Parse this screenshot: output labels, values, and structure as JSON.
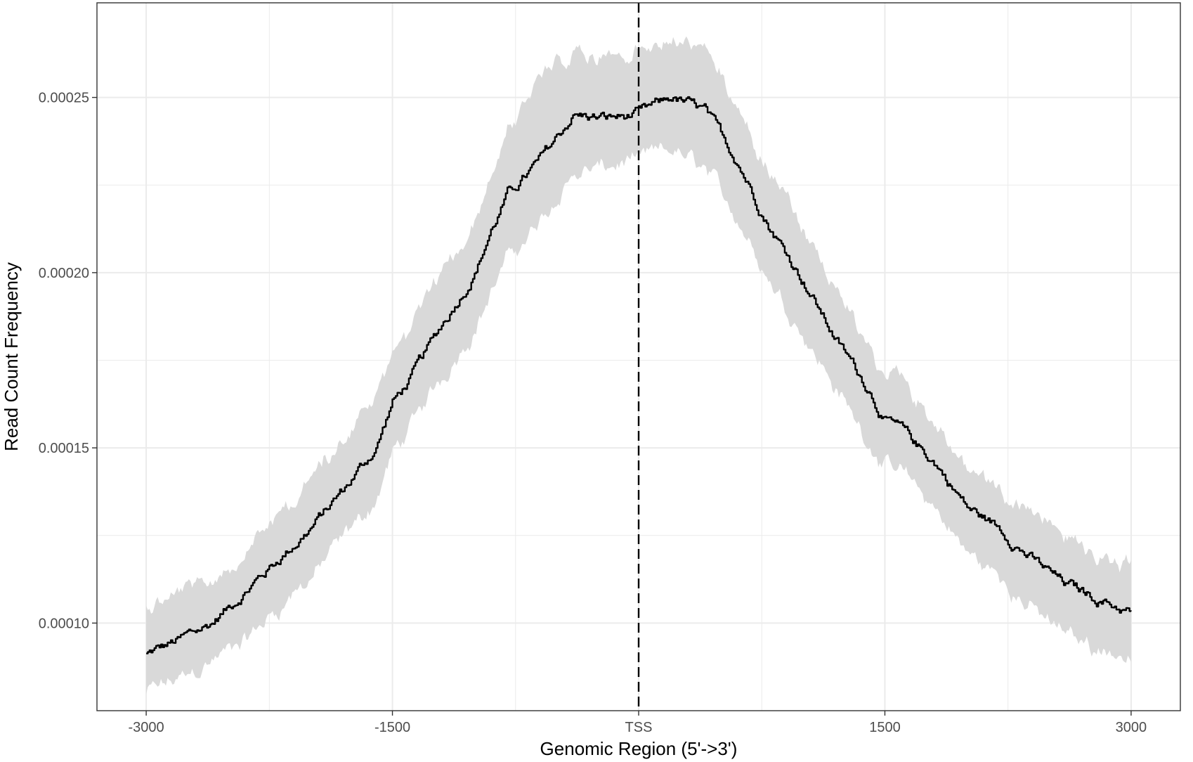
{
  "chart_data": {
    "type": "line",
    "title": "",
    "xlabel": "Genomic Region (5'->3')",
    "ylabel": "Read Count Frequency",
    "xlim": [
      -3300,
      3300
    ],
    "ylim": [
      7.5e-05,
      0.000277
    ],
    "x_ticks": [
      -3000,
      -1500,
      0,
      1500,
      3000
    ],
    "x_tick_labels": [
      "-3000",
      "-1500",
      "TSS",
      "1500",
      "3000"
    ],
    "x_minor_ticks": [
      -2250,
      -750,
      750,
      2250
    ],
    "y_ticks": [
      0.0001,
      0.00015,
      0.0002,
      0.00025
    ],
    "y_tick_labels": [
      "0.00010",
      "0.00015",
      "0.00020",
      "0.00025"
    ],
    "y_minor_ticks": [
      7.5e-05,
      0.000125,
      0.000175,
      0.000225
    ],
    "grid": true,
    "reference_line": {
      "x": 0,
      "style": "dashed",
      "color": "#000000"
    },
    "colors": {
      "line": "#000000",
      "ribbon": "#d9d9d9",
      "grid": "#ebebeb",
      "panel_border": "#333333"
    },
    "series": [
      {
        "x": [
          -3000,
          -2800,
          -2600,
          -2400,
          -2200,
          -2000,
          -1800,
          -1600,
          -1500,
          -1400,
          -1200,
          -1000,
          -900,
          -800,
          -600,
          -400,
          -200,
          0,
          200,
          400,
          600,
          800,
          1000,
          1200,
          1400,
          1500,
          1600,
          1800,
          2000,
          2200,
          2400,
          2600,
          2800,
          3000
        ],
        "y": [
          9.1e-05,
          9.5e-05,
          0.0001,
          0.000109,
          0.000118,
          0.000127,
          0.000138,
          0.00015,
          0.000163,
          0.000169,
          0.000185,
          0.0002,
          0.000212,
          0.000222,
          0.000232,
          0.000245,
          0.000244,
          0.000245,
          0.00025,
          0.000246,
          0.000232,
          0.000213,
          0.000198,
          0.000181,
          0.000167,
          0.000158,
          0.000155,
          0.000146,
          0.000133,
          0.000127,
          0.000118,
          0.000111,
          0.000107,
          0.000103
        ],
        "lower": [
          8e-05,
          8.4e-05,
          8.9e-05,
          9.5e-05,
          0.000104,
          0.000113,
          0.000124,
          0.000135,
          0.000148,
          0.000155,
          0.00017,
          0.000184,
          0.000194,
          0.000204,
          0.000214,
          0.000228,
          0.00023,
          0.000232,
          0.000235,
          0.00023,
          0.000216,
          0.000198,
          0.000183,
          0.000167,
          0.000152,
          0.000145,
          0.000143,
          0.000133,
          0.00012,
          0.000113,
          0.000104,
          9.7e-05,
          9.3e-05,
          9e-05
        ],
        "upper": [
          0.000104,
          0.000108,
          0.000112,
          0.000121,
          0.000131,
          0.000141,
          0.000153,
          0.000165,
          0.000178,
          0.000183,
          0.0002,
          0.000214,
          0.000228,
          0.00024,
          0.000254,
          0.000263,
          0.000261,
          0.000262,
          0.000266,
          0.000262,
          0.000248,
          0.000229,
          0.000213,
          0.000195,
          0.00018,
          0.000171,
          0.000169,
          0.000158,
          0.000144,
          0.000139,
          0.000131,
          0.000124,
          0.000119,
          0.000116
        ]
      }
    ]
  }
}
